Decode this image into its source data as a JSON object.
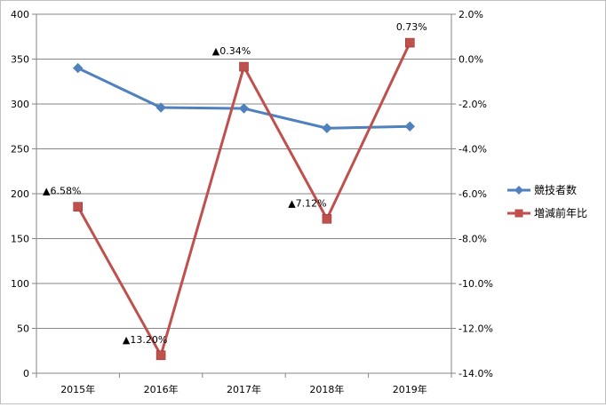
{
  "chart_data": {
    "type": "line",
    "categories": [
      "2015年",
      "2016年",
      "2017年",
      "2018年",
      "2019年"
    ],
    "axes": {
      "left": {
        "min": 0,
        "max": 400,
        "step": 50,
        "ticks": [
          "0",
          "50",
          "100",
          "150",
          "200",
          "250",
          "300",
          "350",
          "400"
        ]
      },
      "right": {
        "min": -14,
        "max": 2,
        "step": 2,
        "unit": "%",
        "ticks": [
          "-14.0%",
          "-12.0%",
          "-10.0%",
          "-8.0%",
          "-6.0%",
          "-4.0%",
          "-2.0%",
          "0.0%",
          "2.0%"
        ]
      }
    },
    "series": [
      {
        "name": "競技者数",
        "axis": "left",
        "color": "#4f81bd",
        "marker": "diamond",
        "values": [
          340,
          296,
          295,
          273,
          275
        ]
      },
      {
        "name": "増減前年比",
        "axis": "right",
        "color": "#c0504d",
        "marker": "square",
        "values": [
          -6.58,
          -13.2,
          -0.34,
          -7.12,
          0.73
        ],
        "labels": [
          "▲6.58%",
          "▲13.20%",
          "▲0.34%",
          "▲7.12%",
          "0.73%"
        ]
      }
    ],
    "legend_position": "right",
    "grid": true
  }
}
